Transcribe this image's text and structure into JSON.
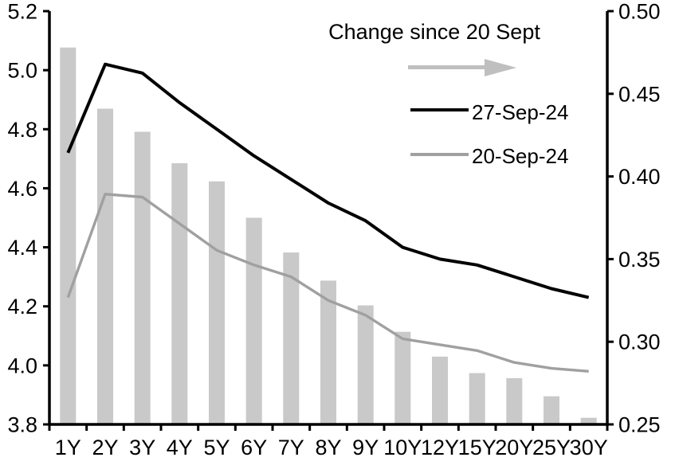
{
  "chart": {
    "colors": {
      "arrow": "#bfbfbf",
      "axis": "#000000",
      "background": "#ffffff"
    }
  },
  "chart_data": {
    "type": "bar+line",
    "categories": [
      "1Y",
      "2Y",
      "3Y",
      "4Y",
      "5Y",
      "6Y",
      "7Y",
      "8Y",
      "9Y",
      "10Y",
      "12Y",
      "15Y",
      "20Y",
      "25Y",
      "30Y"
    ],
    "series": [
      {
        "name": "Change since 20 Sept",
        "type": "bar",
        "axis": "right",
        "color": "#c9c9c9",
        "values": [
          0.478,
          0.441,
          0.427,
          0.408,
          0.397,
          0.375,
          0.354,
          0.337,
          0.322,
          0.306,
          0.291,
          0.281,
          0.278,
          0.267,
          0.254
        ]
      },
      {
        "name": "27-Sep-24",
        "type": "line",
        "axis": "left",
        "color": "#000000",
        "values": [
          4.72,
          5.02,
          4.99,
          4.89,
          4.8,
          4.71,
          4.63,
          4.55,
          4.49,
          4.4,
          4.36,
          4.34,
          4.3,
          4.26,
          4.23
        ]
      },
      {
        "name": "20-Sep-24",
        "type": "line",
        "axis": "left",
        "color": "#a0a0a0",
        "values": [
          4.23,
          4.58,
          4.57,
          4.48,
          4.39,
          4.34,
          4.3,
          4.22,
          4.17,
          4.09,
          4.07,
          4.05,
          4.01,
          3.99,
          3.98
        ]
      }
    ],
    "left_axis": {
      "min": 3.8,
      "max": 5.2,
      "tick_labels": [
        "5.2",
        "5.0",
        "4.8",
        "4.6",
        "4.4",
        "4.2",
        "4.0",
        "3.8"
      ]
    },
    "right_axis": {
      "min": 0.25,
      "max": 0.5,
      "tick_labels": [
        "0.50",
        "0.45",
        "0.40",
        "0.35",
        "0.30",
        "0.25"
      ]
    },
    "title": "",
    "xlabel": "",
    "ylabel": "",
    "grid": false,
    "legend_position": "top-right-inside"
  }
}
